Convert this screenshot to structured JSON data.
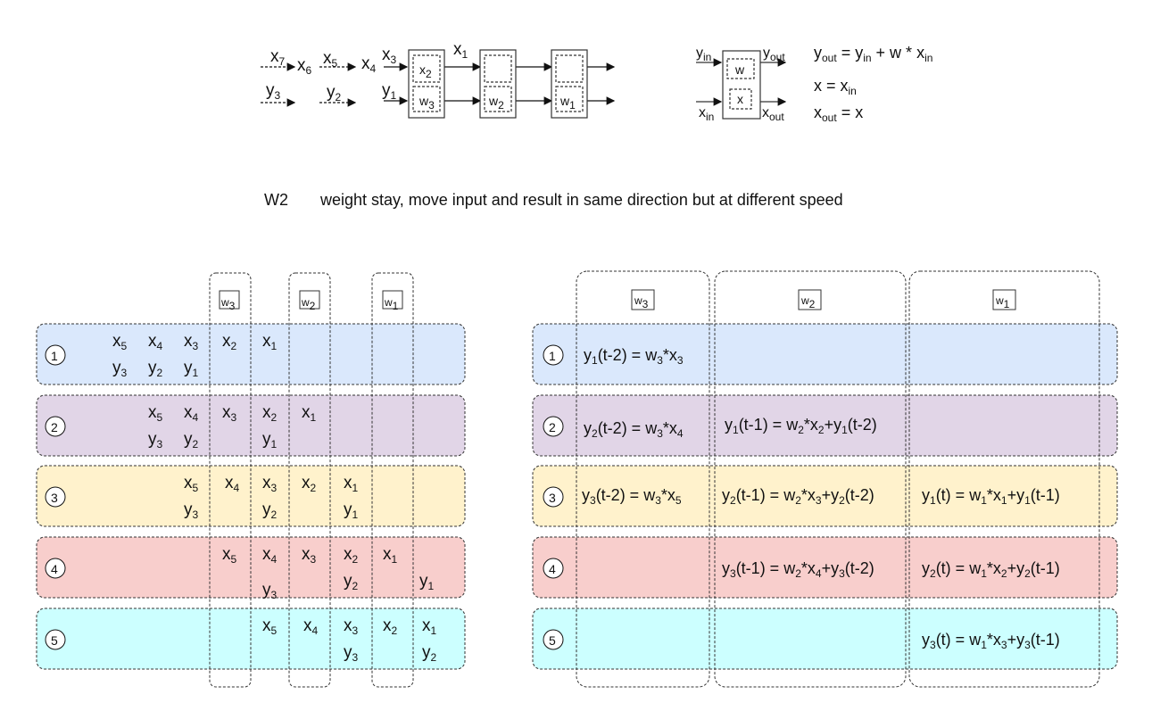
{
  "colors": {
    "row1": "#dae8fc",
    "row2": "#e1d5e7",
    "row3": "#fff2cc",
    "row4": "#f8cecc",
    "row5": "#ccffff",
    "stroke": "#333333"
  },
  "caption": {
    "id": "W2",
    "text": "weight stay, move input and result in same direction but at different speed"
  },
  "top_pipeline": {
    "inputs": [
      {
        "text": "x7"
      },
      {
        "text": "x6"
      },
      {
        "text": "x5"
      },
      {
        "text": "x4"
      },
      {
        "text": "x3"
      },
      {
        "text": "x1"
      },
      {
        "text": "y3"
      },
      {
        "text": "y2"
      },
      {
        "text": "y1"
      }
    ],
    "cells": [
      {
        "top": "x2",
        "bottom": "w3"
      },
      {
        "top": "",
        "bottom": "w2"
      },
      {
        "top": "",
        "bottom": "w1"
      }
    ]
  },
  "pe_definition": {
    "ports": [
      "yin",
      "yout",
      "xin",
      "xout"
    ],
    "regs": [
      "w",
      "x"
    ],
    "equations": [
      "yout = yin + w * xin",
      "x = xin",
      "xout = x"
    ]
  },
  "weight_labels": [
    "w3",
    "w2",
    "w1"
  ],
  "rows": [
    {
      "num": "1"
    },
    {
      "num": "2"
    },
    {
      "num": "3"
    },
    {
      "num": "4"
    },
    {
      "num": "5"
    }
  ],
  "left_table": [
    [
      "x5",
      "x4",
      "x3",
      "x2",
      "x1",
      "y3",
      "y2",
      "y1"
    ],
    [
      "x5",
      "x4",
      "x3",
      "x2",
      "x1",
      "y3",
      "y2",
      "y1"
    ],
    [
      "x5",
      "x4",
      "x3",
      "x2",
      "x1",
      "y3",
      "y2",
      "y1"
    ],
    [
      "x5",
      "x4",
      "x3",
      "x2",
      "x1",
      "y3",
      "y2",
      "y1"
    ],
    [
      "x5",
      "x4",
      "x3",
      "x2",
      "x1",
      "y3",
      "y2"
    ]
  ],
  "right_table": [
    [
      "y1(t-2) = w3*x3"
    ],
    [
      "y2(t-2) = w3*x4",
      "y1(t-1) = w2*x2+y1(t-2)"
    ],
    [
      "y3(t-2) = w3*x5",
      "y2(t-1) = w2*x3+y2(t-2)",
      "y1(t) = w1*x1+y1(t-1)"
    ],
    [
      "y3(t-1) = w2*x4+y3(t-2)",
      "y2(t) = w1*x2+y2(t-1)"
    ],
    [
      "y3(t) = w1*x3+y3(t-1)"
    ]
  ]
}
